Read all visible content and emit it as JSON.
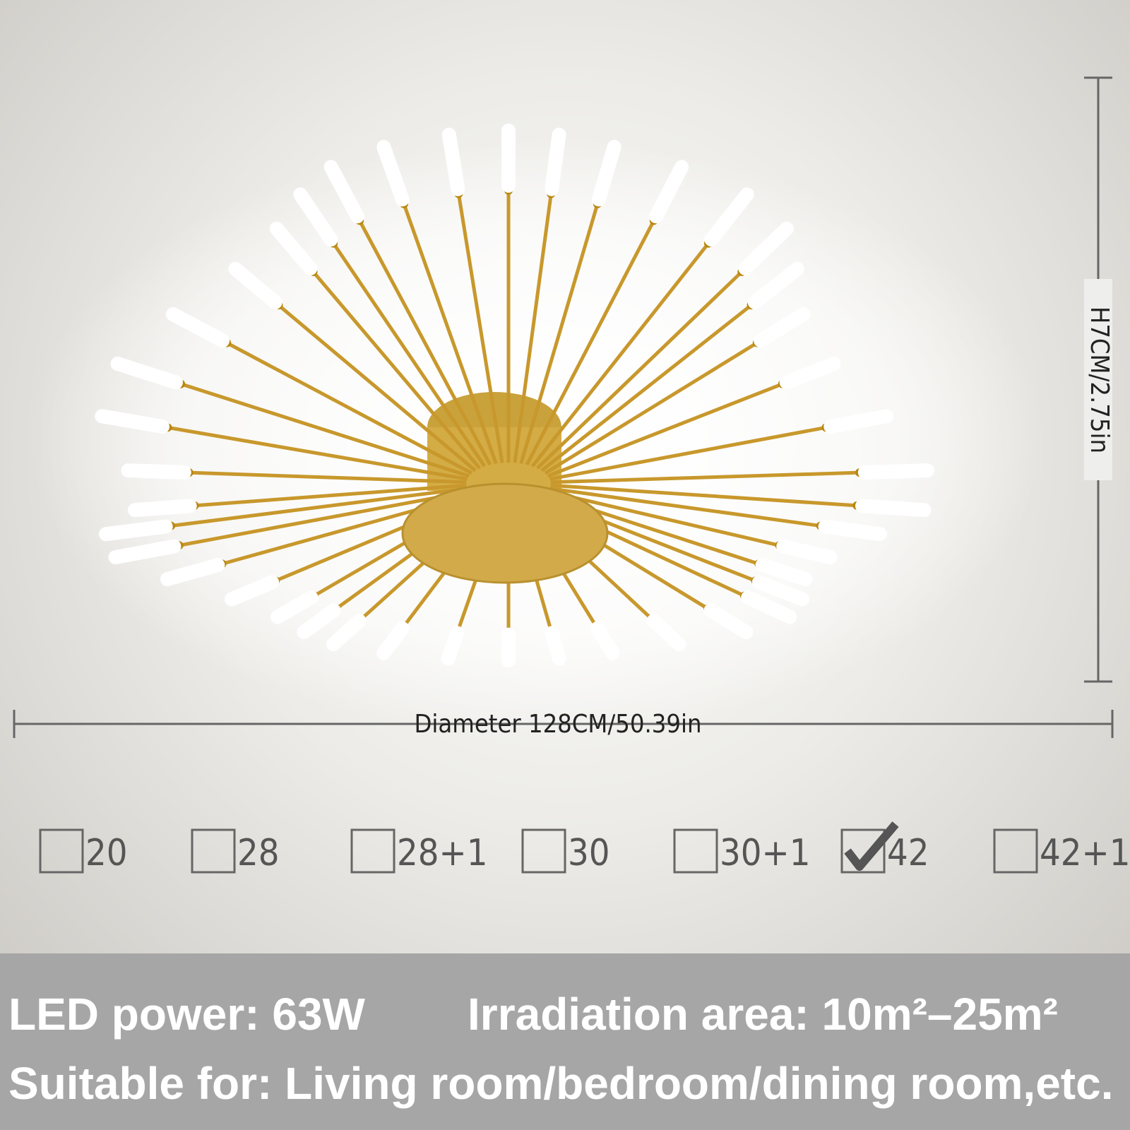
{
  "dimensions": {
    "height": "H7CM/2.75in",
    "diameter": "Diameter 128CM/50.39in"
  },
  "options": [
    {
      "label": "20",
      "checked": false
    },
    {
      "label": "28",
      "checked": false
    },
    {
      "label": "28+1",
      "checked": false
    },
    {
      "label": "30",
      "checked": false
    },
    {
      "label": "30+1",
      "checked": false
    },
    {
      "label": "42",
      "checked": true
    },
    {
      "label": "42+1",
      "checked": false
    }
  ],
  "specs": {
    "power": "LED power: 63W",
    "area": "Irradiation area: 10m²–25m²",
    "suitable": "Suitable for: Living room/bedroom/dining room,etc."
  }
}
